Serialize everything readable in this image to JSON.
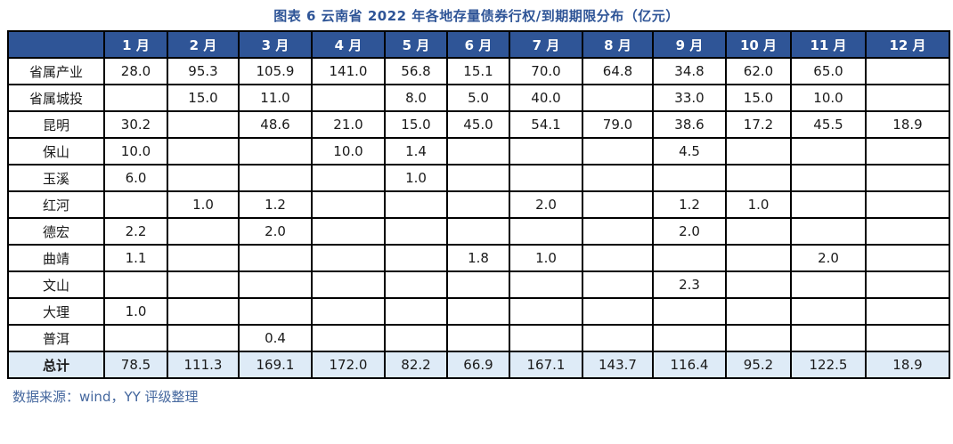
{
  "title": "图表 6 云南省 2022 年各地存量债券行权/到期期限分布（亿元）",
  "source_note": "数据来源：wind，YY 评级整理",
  "colors": {
    "title": "#2F5597",
    "header_bg": "#2F5597",
    "header_text": "#FFFFFF",
    "highlight_red": "#FF0000",
    "total_row_bg": "#DEEBF7",
    "border": "#000000",
    "source_text": "#44679E"
  },
  "table": {
    "corner_label": "",
    "columns": [
      "1 月",
      "2 月",
      "3 月",
      "4 月",
      "5 月",
      "6 月",
      "7 月",
      "8 月",
      "9 月",
      "10 月",
      "11 月",
      "12 月"
    ],
    "rows": [
      {
        "label": "省属产业",
        "values": [
          "28.0",
          "95.3",
          "105.9",
          "141.0",
          "56.8",
          "15.1",
          "70.0",
          "64.8",
          "34.8",
          "62.0",
          "65.0",
          ""
        ],
        "red": [
          false,
          true,
          true,
          true,
          false,
          false,
          true,
          false,
          false,
          false,
          false,
          false
        ]
      },
      {
        "label": "省属城投",
        "values": [
          "",
          "15.0",
          "11.0",
          "",
          "8.0",
          "5.0",
          "40.0",
          "",
          "33.0",
          "15.0",
          "10.0",
          ""
        ],
        "red": [
          false,
          true,
          true,
          false,
          false,
          false,
          true,
          false,
          false,
          false,
          false,
          false
        ]
      },
      {
        "label": "昆明",
        "values": [
          "30.2",
          "",
          "48.6",
          "21.0",
          "15.0",
          "45.0",
          "54.1",
          "79.0",
          "38.6",
          "17.2",
          "45.5",
          "18.9"
        ]
      },
      {
        "label": "保山",
        "values": [
          "10.0",
          "",
          "",
          "10.0",
          "1.4",
          "",
          "",
          "",
          "4.5",
          "",
          "",
          ""
        ]
      },
      {
        "label": "玉溪",
        "values": [
          "6.0",
          "",
          "",
          "",
          "1.0",
          "",
          "",
          "",
          "",
          "",
          "",
          ""
        ]
      },
      {
        "label": "红河",
        "values": [
          "",
          "1.0",
          "1.2",
          "",
          "",
          "",
          "2.0",
          "",
          "1.2",
          "1.0",
          "",
          ""
        ]
      },
      {
        "label": "德宏",
        "values": [
          "2.2",
          "",
          "2.0",
          "",
          "",
          "",
          "",
          "",
          "2.0",
          "",
          "",
          ""
        ]
      },
      {
        "label": "曲靖",
        "values": [
          "1.1",
          "",
          "",
          "",
          "",
          "1.8",
          "1.0",
          "",
          "",
          "",
          "2.0",
          ""
        ]
      },
      {
        "label": "文山",
        "values": [
          "",
          "",
          "",
          "",
          "",
          "",
          "",
          "",
          "2.3",
          "",
          "",
          ""
        ]
      },
      {
        "label": "大理",
        "values": [
          "1.0",
          "",
          "",
          "",
          "",
          "",
          "",
          "",
          "",
          "",
          "",
          ""
        ]
      },
      {
        "label": "普洱",
        "values": [
          "",
          "",
          "0.4",
          "",
          "",
          "",
          "",
          "",
          "",
          "",
          "",
          ""
        ]
      }
    ],
    "total_row": {
      "label": "总计",
      "values": [
        "78.5",
        "111.3",
        "169.1",
        "172.0",
        "82.2",
        "66.9",
        "167.1",
        "143.7",
        "116.4",
        "95.2",
        "122.5",
        "18.9"
      ]
    }
  }
}
